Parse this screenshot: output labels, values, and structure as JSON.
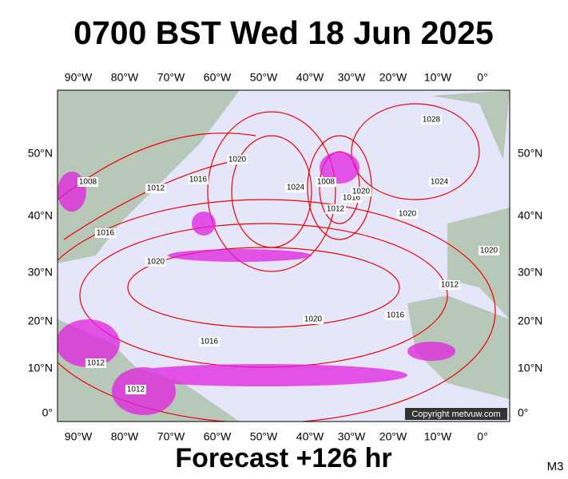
{
  "header": {
    "title": "0700 BST Wed 18 Jun 2025"
  },
  "map": {
    "lon_labels": [
      "90°W",
      "80°W",
      "70°W",
      "60°W",
      "50°W",
      "40°W",
      "30°W",
      "20°W",
      "10°W",
      "0°"
    ],
    "lat_labels": [
      "50°N",
      "40°N",
      "30°N",
      "20°N",
      "10°N",
      "0°"
    ],
    "isobar_labels": [
      "1008",
      "1012",
      "1016",
      "1020",
      "1016",
      "1020",
      "1024",
      "1008",
      "1012",
      "1016",
      "1020",
      "1028",
      "1024",
      "1020",
      "1020",
      "1012",
      "1020",
      "1016",
      "1012",
      "1012",
      "1016"
    ],
    "copyright": "Copyright metvuw.com"
  },
  "footer": {
    "forecast": "Forecast +126 hr",
    "model": "M3"
  }
}
